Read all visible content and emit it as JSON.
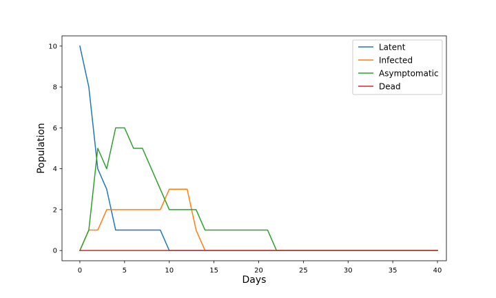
{
  "chart_data": {
    "type": "line",
    "title": "",
    "xlabel": "Days",
    "ylabel": "Population",
    "xlim": [
      -2,
      41
    ],
    "ylim": [
      -0.5,
      10.5
    ],
    "xticks": [
      0,
      5,
      10,
      15,
      20,
      25,
      30,
      35,
      40
    ],
    "yticks": [
      0,
      2,
      4,
      6,
      8,
      10
    ],
    "grid": false,
    "legend_position": "top-right",
    "series": [
      {
        "name": "Latent",
        "color": "#1f77b4",
        "x": [
          0,
          1,
          2,
          3,
          4,
          5,
          6,
          7,
          8,
          9,
          10,
          11,
          12,
          13,
          14,
          15,
          16,
          17,
          18,
          19,
          20,
          21,
          22,
          23,
          24,
          25,
          26,
          27,
          28,
          29,
          30,
          31,
          32,
          33,
          34,
          35,
          36,
          37,
          38,
          39,
          40
        ],
        "y": [
          10,
          8,
          4,
          3,
          1,
          1,
          1,
          1,
          1,
          1,
          0,
          0,
          0,
          0,
          0,
          0,
          0,
          0,
          0,
          0,
          0,
          0,
          0,
          0,
          0,
          0,
          0,
          0,
          0,
          0,
          0,
          0,
          0,
          0,
          0,
          0,
          0,
          0,
          0,
          0,
          0
        ]
      },
      {
        "name": "Infected",
        "color": "#ff7f0e",
        "x": [
          0,
          1,
          2,
          3,
          4,
          5,
          6,
          7,
          8,
          9,
          10,
          11,
          12,
          13,
          14,
          15,
          16,
          17,
          18,
          19,
          20,
          21,
          22,
          23,
          24,
          25,
          26,
          27,
          28,
          29,
          30,
          31,
          32,
          33,
          34,
          35,
          36,
          37,
          38,
          39,
          40
        ],
        "y": [
          0,
          1,
          1,
          2,
          2,
          2,
          2,
          2,
          2,
          2,
          3,
          3,
          3,
          1,
          0,
          0,
          0,
          0,
          0,
          0,
          0,
          0,
          0,
          0,
          0,
          0,
          0,
          0,
          0,
          0,
          0,
          0,
          0,
          0,
          0,
          0,
          0,
          0,
          0,
          0,
          0
        ]
      },
      {
        "name": "Asymptomatic",
        "color": "#2ca02c",
        "x": [
          0,
          1,
          2,
          3,
          4,
          5,
          6,
          7,
          8,
          9,
          10,
          11,
          12,
          13,
          14,
          15,
          16,
          17,
          18,
          19,
          20,
          21,
          22,
          23,
          24,
          25,
          26,
          27,
          28,
          29,
          30,
          31,
          32,
          33,
          34,
          35,
          36,
          37,
          38,
          39,
          40
        ],
        "y": [
          0,
          1,
          5,
          4,
          6,
          6,
          5,
          5,
          4,
          3,
          2,
          2,
          2,
          2,
          1,
          1,
          1,
          1,
          1,
          1,
          1,
          1,
          0,
          0,
          0,
          0,
          0,
          0,
          0,
          0,
          0,
          0,
          0,
          0,
          0,
          0,
          0,
          0,
          0,
          0,
          0
        ]
      },
      {
        "name": "Dead",
        "color": "#d62728",
        "x": [
          0,
          1,
          2,
          3,
          4,
          5,
          6,
          7,
          8,
          9,
          10,
          11,
          12,
          13,
          14,
          15,
          16,
          17,
          18,
          19,
          20,
          21,
          22,
          23,
          24,
          25,
          26,
          27,
          28,
          29,
          30,
          31,
          32,
          33,
          34,
          35,
          36,
          37,
          38,
          39,
          40
        ],
        "y": [
          0,
          0,
          0,
          0,
          0,
          0,
          0,
          0,
          0,
          0,
          0,
          0,
          0,
          0,
          0,
          0,
          0,
          0,
          0,
          0,
          0,
          0,
          0,
          0,
          0,
          0,
          0,
          0,
          0,
          0,
          0,
          0,
          0,
          0,
          0,
          0,
          0,
          0,
          0,
          0,
          0
        ]
      }
    ]
  }
}
